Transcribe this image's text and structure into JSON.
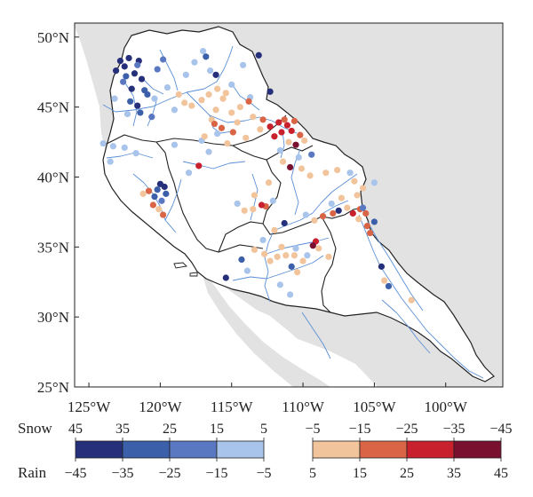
{
  "map": {
    "lat_labels": [
      "50°N",
      "45°N",
      "40°N",
      "35°N",
      "30°N",
      "25°N"
    ],
    "lon_labels": [
      "125°W",
      "120°W",
      "115°W",
      "110°W",
      "105°W",
      "100°W"
    ],
    "lat_values": [
      50,
      45,
      40,
      35,
      30,
      25
    ],
    "lon_values": [
      -125,
      -120,
      -115,
      -110,
      -105,
      -100
    ],
    "lon_range": [
      -126,
      -96
    ],
    "lat_range": [
      25,
      51
    ],
    "colors": {
      "land": "#ffffff",
      "ocean_land_gray": "#e2e2e2",
      "rivers": "#5b8fd6",
      "borders": "#222222"
    }
  },
  "legend": {
    "snow_label": "Snow",
    "rain_label": "Rain",
    "cool": {
      "snow_ticks": [
        "45",
        "35",
        "25",
        "15",
        "5"
      ],
      "rain_ticks": [
        "−45",
        "−35",
        "−25",
        "−15",
        "−5"
      ],
      "colors": [
        "#26307a",
        "#3b5fa8",
        "#5a78c2",
        "#a8c4ea"
      ]
    },
    "warm": {
      "snow_ticks": [
        "−5",
        "−15",
        "−25",
        "−35",
        "−45"
      ],
      "rain_ticks": [
        "5",
        "15",
        "25",
        "35",
        "45"
      ],
      "colors": [
        "#f2c49c",
        "#d96446",
        "#c9202e",
        "#7a1030"
      ]
    }
  },
  "stations": [
    {
      "lon": -122.8,
      "lat": 48.3,
      "c": 0
    },
    {
      "lon": -122.5,
      "lat": 47.9,
      "c": 0
    },
    {
      "lon": -123.1,
      "lat": 47.6,
      "c": 0
    },
    {
      "lon": -122.2,
      "lat": 48.5,
      "c": 0
    },
    {
      "lon": -121.5,
      "lat": 48.3,
      "c": 0
    },
    {
      "lon": -121.8,
      "lat": 47.4,
      "c": 0
    },
    {
      "lon": -121.3,
      "lat": 47.0,
      "c": 0
    },
    {
      "lon": -122.0,
      "lat": 46.3,
      "c": 0
    },
    {
      "lon": -121.6,
      "lat": 45.1,
      "c": 0
    },
    {
      "lon": -122.4,
      "lat": 47.2,
      "c": 1
    },
    {
      "lon": -121.1,
      "lat": 46.2,
      "c": 1
    },
    {
      "lon": -122.1,
      "lat": 45.4,
      "c": 1
    },
    {
      "lon": -121.4,
      "lat": 44.6,
      "c": 1
    },
    {
      "lon": -120.9,
      "lat": 45.9,
      "c": 1
    },
    {
      "lon": -122.6,
      "lat": 46.8,
      "c": 2
    },
    {
      "lon": -121.6,
      "lat": 48.0,
      "c": 2
    },
    {
      "lon": -120.2,
      "lat": 47.7,
      "c": 2
    },
    {
      "lon": -119.8,
      "lat": 48.4,
      "c": 2
    },
    {
      "lon": -120.6,
      "lat": 44.3,
      "c": 2
    },
    {
      "lon": -122.3,
      "lat": 44.5,
      "c": 3
    },
    {
      "lon": -123.2,
      "lat": 45.6,
      "c": 3
    },
    {
      "lon": -120.4,
      "lat": 45.6,
      "c": 3
    },
    {
      "lon": -119.5,
      "lat": 46.4,
      "c": 3
    },
    {
      "lon": -118.2,
      "lat": 47.3,
      "c": 3
    },
    {
      "lon": -117.6,
      "lat": 48.2,
      "c": 3
    },
    {
      "lon": -117.0,
      "lat": 49.0,
      "c": 3
    },
    {
      "lon": -116.5,
      "lat": 47.6,
      "c": 3
    },
    {
      "lon": -115.0,
      "lat": 46.6,
      "c": 3
    },
    {
      "lon": -114.2,
      "lat": 48.0,
      "c": 3
    },
    {
      "lon": -113.7,
      "lat": 45.7,
      "c": 3
    },
    {
      "lon": -119.0,
      "lat": 44.8,
      "c": 3
    },
    {
      "lon": -124.0,
      "lat": 42.4,
      "c": 3
    },
    {
      "lon": -123.3,
      "lat": 42.2,
      "c": 3
    },
    {
      "lon": -122.5,
      "lat": 42.1,
      "c": 3
    },
    {
      "lon": -121.7,
      "lat": 41.7,
      "c": 3
    },
    {
      "lon": -123.5,
      "lat": 41.1,
      "c": 3
    },
    {
      "lon": -119.0,
      "lat": 42.3,
      "c": 3
    },
    {
      "lon": -116.0,
      "lat": 43.1,
      "c": 3
    },
    {
      "lon": -117.1,
      "lat": 42.6,
      "c": 3
    },
    {
      "lon": -113.1,
      "lat": 48.7,
      "c": 0
    },
    {
      "lon": -116.1,
      "lat": 47.3,
      "c": 0
    },
    {
      "lon": -112.3,
      "lat": 46.1,
      "c": 0
    },
    {
      "lon": -116.8,
      "lat": 48.6,
      "c": 1
    },
    {
      "lon": -120.0,
      "lat": 39.5,
      "c": 0
    },
    {
      "lon": -119.7,
      "lat": 39.3,
      "c": 0
    },
    {
      "lon": -120.2,
      "lat": 39.1,
      "c": 1
    },
    {
      "lon": -119.6,
      "lat": 38.8,
      "c": 1
    },
    {
      "lon": -120.4,
      "lat": 38.6,
      "c": 1
    },
    {
      "lon": -119.9,
      "lat": 38.3,
      "c": 2
    },
    {
      "lon": -120.8,
      "lat": 39.0,
      "c": 5
    },
    {
      "lon": -120.5,
      "lat": 38.0,
      "c": 5
    },
    {
      "lon": -119.8,
      "lat": 37.3,
      "c": 5
    },
    {
      "lon": -121.2,
      "lat": 38.8,
      "c": 4
    },
    {
      "lon": -120.1,
      "lat": 37.7,
      "c": 4
    },
    {
      "lon": -118.0,
      "lat": 40.3,
      "c": 3
    },
    {
      "lon": -117.3,
      "lat": 40.8,
      "c": 6
    },
    {
      "lon": -116.6,
      "lat": 41.8,
      "c": 3
    },
    {
      "lon": -117.8,
      "lat": 45.1,
      "c": 4
    },
    {
      "lon": -117.1,
      "lat": 45.5,
      "c": 4
    },
    {
      "lon": -116.6,
      "lat": 45.9,
      "c": 4
    },
    {
      "lon": -116.1,
      "lat": 44.8,
      "c": 4
    },
    {
      "lon": -115.6,
      "lat": 45.6,
      "c": 4
    },
    {
      "lon": -116.4,
      "lat": 44.1,
      "c": 4
    },
    {
      "lon": -115.0,
      "lat": 44.6,
      "c": 4
    },
    {
      "lon": -114.6,
      "lat": 43.9,
      "c": 4
    },
    {
      "lon": -113.5,
      "lat": 44.3,
      "c": 4
    },
    {
      "lon": -113.0,
      "lat": 43.4,
      "c": 4
    },
    {
      "lon": -114.0,
      "lat": 42.8,
      "c": 4
    },
    {
      "lon": -115.3,
      "lat": 42.4,
      "c": 4
    },
    {
      "lon": -116.9,
      "lat": 42.9,
      "c": 4
    },
    {
      "lon": -118.7,
      "lat": 45.9,
      "c": 4
    },
    {
      "lon": -118.3,
      "lat": 45.3,
      "c": 4
    },
    {
      "lon": -116.0,
      "lat": 46.3,
      "c": 4
    },
    {
      "lon": -115.4,
      "lat": 46.0,
      "c": 4
    },
    {
      "lon": -114.4,
      "lat": 45.0,
      "c": 4
    },
    {
      "lon": -115.7,
      "lat": 43.5,
      "c": 5
    },
    {
      "lon": -114.9,
      "lat": 43.2,
      "c": 5
    },
    {
      "lon": -116.2,
      "lat": 43.8,
      "c": 5
    },
    {
      "lon": -113.8,
      "lat": 45.4,
      "c": 5
    },
    {
      "lon": -112.8,
      "lat": 44.1,
      "c": 5
    },
    {
      "lon": -112.3,
      "lat": 43.6,
      "c": 6
    },
    {
      "lon": -111.7,
      "lat": 43.9,
      "c": 6
    },
    {
      "lon": -111.1,
      "lat": 43.7,
      "c": 6
    },
    {
      "lon": -111.5,
      "lat": 43.2,
      "c": 6
    },
    {
      "lon": -110.8,
      "lat": 43.3,
      "c": 6
    },
    {
      "lon": -112.0,
      "lat": 42.9,
      "c": 6
    },
    {
      "lon": -111.3,
      "lat": 44.1,
      "c": 5
    },
    {
      "lon": -110.6,
      "lat": 44.0,
      "c": 5
    },
    {
      "lon": -110.2,
      "lat": 43.0,
      "c": 5
    },
    {
      "lon": -111.0,
      "lat": 42.5,
      "c": 4
    },
    {
      "lon": -110.5,
      "lat": 42.3,
      "c": 7
    },
    {
      "lon": -109.9,
      "lat": 42.6,
      "c": 4
    },
    {
      "lon": -109.4,
      "lat": 41.6,
      "c": 2
    },
    {
      "lon": -110.3,
      "lat": 41.4,
      "c": 3
    },
    {
      "lon": -111.4,
      "lat": 41.1,
      "c": 4
    },
    {
      "lon": -110.9,
      "lat": 40.7,
      "c": 7
    },
    {
      "lon": -110.1,
      "lat": 40.6,
      "c": 4
    },
    {
      "lon": -111.6,
      "lat": 41.9,
      "c": 3
    },
    {
      "lon": -109.5,
      "lat": 40.1,
      "c": 4
    },
    {
      "lon": -108.4,
      "lat": 40.3,
      "c": 4
    },
    {
      "lon": -107.6,
      "lat": 40.5,
      "c": 4
    },
    {
      "lon": -106.4,
      "lat": 39.7,
      "c": 4
    },
    {
      "lon": -105.8,
      "lat": 39.2,
      "c": 4
    },
    {
      "lon": -106.2,
      "lat": 38.7,
      "c": 4
    },
    {
      "lon": -107.3,
      "lat": 38.5,
      "c": 4
    },
    {
      "lon": -108.0,
      "lat": 38.1,
      "c": 3
    },
    {
      "lon": -107.5,
      "lat": 37.6,
      "c": 0
    },
    {
      "lon": -107.9,
      "lat": 37.4,
      "c": 5
    },
    {
      "lon": -106.9,
      "lat": 37.8,
      "c": 4
    },
    {
      "lon": -106.5,
      "lat": 37.4,
      "c": 6
    },
    {
      "lon": -106.0,
      "lat": 37.7,
      "c": 5
    },
    {
      "lon": -105.6,
      "lat": 37.4,
      "c": 5
    },
    {
      "lon": -106.1,
      "lat": 37.0,
      "c": 4
    },
    {
      "lon": -105.5,
      "lat": 36.5,
      "c": 5
    },
    {
      "lon": -105.3,
      "lat": 36.0,
      "c": 5
    },
    {
      "lon": -108.6,
      "lat": 37.2,
      "c": 5
    },
    {
      "lon": -109.2,
      "lat": 36.9,
      "c": 4
    },
    {
      "lon": -109.8,
      "lat": 37.3,
      "c": 3
    },
    {
      "lon": -105.0,
      "lat": 39.6,
      "c": 3
    },
    {
      "lon": -106.7,
      "lat": 40.3,
      "c": 3
    },
    {
      "lon": -105.8,
      "lat": 37.8,
      "c": 2
    },
    {
      "lon": -105.0,
      "lat": 36.8,
      "c": 1
    },
    {
      "lon": -109.1,
      "lat": 35.4,
      "c": 6
    },
    {
      "lon": -109.3,
      "lat": 35.1,
      "c": 7
    },
    {
      "lon": -108.9,
      "lat": 34.9,
      "c": 4
    },
    {
      "lon": -112.4,
      "lat": 39.6,
      "c": 4
    },
    {
      "lon": -113.4,
      "lat": 38.7,
      "c": 4
    },
    {
      "lon": -112.1,
      "lat": 38.3,
      "c": 3
    },
    {
      "lon": -111.3,
      "lat": 36.7,
      "c": 0
    },
    {
      "lon": -112.0,
      "lat": 36.2,
      "c": 4
    },
    {
      "lon": -112.6,
      "lat": 37.9,
      "c": 5
    },
    {
      "lon": -113.5,
      "lat": 37.7,
      "c": 4
    },
    {
      "lon": -114.1,
      "lat": 37.6,
      "c": 4
    },
    {
      "lon": -114.6,
      "lat": 38.1,
      "c": 3
    },
    {
      "lon": -112.9,
      "lat": 38.0,
      "c": 6
    },
    {
      "lon": -114.3,
      "lat": 34.1,
      "c": 1
    },
    {
      "lon": -113.4,
      "lat": 34.8,
      "c": 4
    },
    {
      "lon": -112.7,
      "lat": 34.5,
      "c": 4
    },
    {
      "lon": -111.8,
      "lat": 34.3,
      "c": 4
    },
    {
      "lon": -111.2,
      "lat": 34.4,
      "c": 4
    },
    {
      "lon": -112.3,
      "lat": 34.0,
      "c": 4
    },
    {
      "lon": -110.6,
      "lat": 34.4,
      "c": 4
    },
    {
      "lon": -110.0,
      "lat": 34.0,
      "c": 4
    },
    {
      "lon": -111.5,
      "lat": 35.0,
      "c": 4
    },
    {
      "lon": -110.4,
      "lat": 33.2,
      "c": 4
    },
    {
      "lon": -109.7,
      "lat": 34.4,
      "c": 3
    },
    {
      "lon": -110.5,
      "lat": 34.9,
      "c": 3
    },
    {
      "lon": -111.6,
      "lat": 32.3,
      "c": 3
    },
    {
      "lon": -110.8,
      "lat": 33.6,
      "c": 1
    },
    {
      "lon": -115.4,
      "lat": 32.8,
      "c": 0
    },
    {
      "lon": -113.9,
      "lat": 33.3,
      "c": 3
    },
    {
      "lon": -110.9,
      "lat": 31.6,
      "c": 3
    },
    {
      "lon": -112.8,
      "lat": 35.5,
      "c": 3
    },
    {
      "lon": -108.2,
      "lat": 34.3,
      "c": 4
    },
    {
      "lon": -104.5,
      "lat": 33.6,
      "c": 0
    },
    {
      "lon": -104.3,
      "lat": 32.6,
      "c": 4
    },
    {
      "lon": -104.0,
      "lat": 32.2,
      "c": 1
    },
    {
      "lon": -102.4,
      "lat": 31.2,
      "c": 4
    }
  ]
}
